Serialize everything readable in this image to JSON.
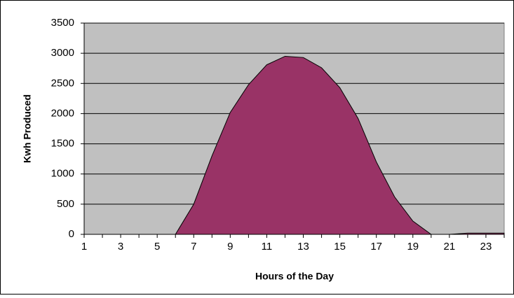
{
  "chart_data": {
    "type": "area",
    "x_label": "Hours of the Day",
    "y_label": "Kwh Produced",
    "categories": [
      1,
      null,
      3,
      null,
      5,
      null,
      7,
      null,
      9,
      null,
      11,
      null,
      13,
      null,
      15,
      null,
      17,
      null,
      19,
      null,
      21,
      null,
      23,
      null
    ],
    "series": [
      {
        "name": "Kwh",
        "color": "#993366",
        "values": [
          0,
          0,
          0,
          0,
          0,
          0,
          500,
          1300,
          2020,
          2480,
          2810,
          2950,
          2930,
          2760,
          2430,
          1920,
          1200,
          620,
          220,
          0,
          0,
          20,
          20,
          20
        ]
      }
    ],
    "ylim": [
      0,
      3500
    ],
    "yticks": [
      0,
      500,
      1000,
      1500,
      2000,
      2500,
      3000,
      3500
    ],
    "grid": true
  }
}
